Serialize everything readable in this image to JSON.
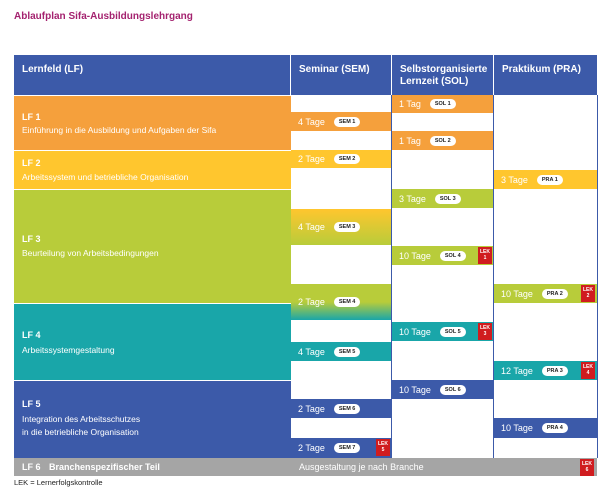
{
  "title": "Ablaufplan Sifa-Ausbildungslehrgang",
  "headers": {
    "lf": "Lernfeld (LF)",
    "sem": "Seminar (SEM)",
    "sol": "Selbstorganisierte Lernzeit (SOL)",
    "pra": "Praktikum (PRA)"
  },
  "colors": {
    "header": "#3c5aa9",
    "lf1": "#f5a03c",
    "lf2": "#ffc62e",
    "lf3": "#b8cc3a",
    "lf4": "#19a6a9",
    "lf5": "#3c5aa9",
    "lf6": "#a5a5a5",
    "lek": "#d01c1f",
    "title": "#a4226f"
  },
  "lernfelder": [
    {
      "id": "LF 1",
      "label": "Einführung in die Ausbildung und Aufgaben der Sifa"
    },
    {
      "id": "LF 2",
      "label": "Arbeitssystem und betriebliche Organisation"
    },
    {
      "id": "LF 3",
      "label": "Beurteilung von Arbeitsbedingungen"
    },
    {
      "id": "LF 4",
      "label": "Arbeitssystemgestaltung"
    },
    {
      "id": "LF 5",
      "label_line1": "Integration des Arbeitsschutzes",
      "label_line2": "in die betriebliche Organisation"
    },
    {
      "id": "LF 6",
      "label": "Branchenspezifischer Teil"
    }
  ],
  "blocks": {
    "sem1": {
      "days": "4 Tage",
      "code": "SEM 1"
    },
    "sem2": {
      "days": "2 Tage",
      "code": "SEM 2"
    },
    "sem3": {
      "days": "4 Tage",
      "code": "SEM 3"
    },
    "sem4": {
      "days": "2 Tage",
      "code": "SEM 4"
    },
    "sem5": {
      "days": "4 Tage",
      "code": "SEM 5"
    },
    "sem6": {
      "days": "2 Tage",
      "code": "SEM 6"
    },
    "sem7": {
      "days": "2 Tage",
      "code": "SEM 7"
    },
    "sol1": {
      "days": "1 Tag",
      "code": "SOL 1"
    },
    "sol2": {
      "days": "1 Tag",
      "code": "SOL 2"
    },
    "sol3": {
      "days": "3 Tage",
      "code": "SOL 3"
    },
    "sol4": {
      "days": "10 Tage",
      "code": "SOL 4"
    },
    "sol5": {
      "days": "10 Tage",
      "code": "SOL 5"
    },
    "sol6": {
      "days": "10 Tage",
      "code": "SOL 6"
    },
    "pra1": {
      "days": "3 Tage",
      "code": "PRA 1"
    },
    "pra2": {
      "days": "10 Tage",
      "code": "PRA 2"
    },
    "pra3": {
      "days": "12 Tage",
      "code": "PRA 3"
    },
    "pra4": {
      "days": "10 Tage",
      "code": "PRA 4"
    }
  },
  "lek": {
    "word": "LEK",
    "n1": "1",
    "n2": "2",
    "n3": "3",
    "n4": "4",
    "n5": "5",
    "n6": "6"
  },
  "lf6_note": "Ausgestaltung je nach Branche",
  "footnote": "LEK = Lernerfolgskontrolle"
}
